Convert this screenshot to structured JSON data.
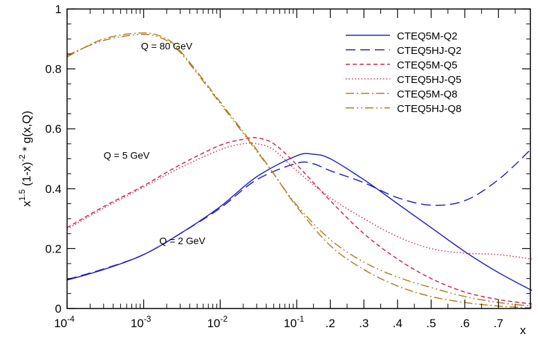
{
  "chart_data": {
    "type": "line",
    "title": "",
    "xlabel": "x",
    "ylabel": "x^{1.5} (1-x)^{-2} * g(x,Q)",
    "xscale": "log-then-linear",
    "xlim": [
      0.0001,
      0.8
    ],
    "ylim": [
      0,
      1
    ],
    "grid": false,
    "legend_position": "top-right",
    "y_ticks": [
      {
        "value": 0,
        "label": "0"
      },
      {
        "value": 0.2,
        "label": "0.2"
      },
      {
        "value": 0.4,
        "label": "0.4"
      },
      {
        "value": 0.6,
        "label": "0.6"
      },
      {
        "value": 0.8,
        "label": "0.8"
      },
      {
        "value": 1,
        "label": "1"
      }
    ],
    "x_major_ticks": [
      {
        "value": 0.0001,
        "base": "10",
        "exp": "-4"
      },
      {
        "value": 0.001,
        "base": "10",
        "exp": "-3"
      },
      {
        "value": 0.01,
        "base": "10",
        "exp": "-2"
      },
      {
        "value": 0.1,
        "base": "10",
        "exp": "-1"
      }
    ],
    "x_linear_ticks": [
      {
        "value": 0.2,
        "label": ".2"
      },
      {
        "value": 0.3,
        "label": ".3"
      },
      {
        "value": 0.4,
        "label": ".4"
      },
      {
        "value": 0.5,
        "label": ".5"
      },
      {
        "value": 0.6,
        "label": ".6"
      },
      {
        "value": 0.7,
        "label": ".7"
      }
    ],
    "annotations": [
      {
        "text": "Q = 80 GeV",
        "x": 0.002,
        "y": 0.865
      },
      {
        "text": "Q = 5 GeV",
        "x": 0.0006,
        "y": 0.5
      },
      {
        "text": "Q = 2 GeV",
        "x": 0.0032,
        "y": 0.215
      }
    ],
    "series": [
      {
        "name": "CTEQ5M-Q2",
        "color": "#1f1fcc",
        "dash": "solid",
        "x": [
          0.0001,
          0.0003,
          0.001,
          0.003,
          0.01,
          0.03,
          0.1,
          0.15,
          0.2,
          0.3,
          0.4,
          0.5,
          0.6,
          0.7,
          0.8
        ],
        "y": [
          0.095,
          0.13,
          0.18,
          0.25,
          0.34,
          0.44,
          0.51,
          0.515,
          0.5,
          0.43,
          0.35,
          0.27,
          0.19,
          0.12,
          0.06
        ]
      },
      {
        "name": "CTEQ5HJ-Q2",
        "color": "#1f1fcc",
        "dash": "long-dash",
        "x": [
          0.0001,
          0.0003,
          0.001,
          0.003,
          0.01,
          0.03,
          0.1,
          0.15,
          0.2,
          0.3,
          0.4,
          0.5,
          0.6,
          0.7,
          0.8
        ],
        "y": [
          0.097,
          0.132,
          0.18,
          0.25,
          0.335,
          0.43,
          0.485,
          0.483,
          0.46,
          0.42,
          0.37,
          0.345,
          0.36,
          0.43,
          0.535
        ]
      },
      {
        "name": "CTEQ5M-Q5",
        "color": "#d6204a",
        "dash": "dashed",
        "x": [
          0.0001,
          0.0003,
          0.001,
          0.003,
          0.01,
          0.02,
          0.03,
          0.05,
          0.1,
          0.2,
          0.3,
          0.4,
          0.5,
          0.6,
          0.7,
          0.8
        ],
        "y": [
          0.27,
          0.34,
          0.41,
          0.48,
          0.545,
          0.565,
          0.57,
          0.55,
          0.48,
          0.36,
          0.25,
          0.165,
          0.1,
          0.055,
          0.03,
          0.015
        ]
      },
      {
        "name": "CTEQ5HJ-Q5",
        "color": "#d6204a",
        "dash": "dotted",
        "x": [
          0.0001,
          0.0003,
          0.001,
          0.003,
          0.01,
          0.02,
          0.03,
          0.05,
          0.1,
          0.2,
          0.3,
          0.4,
          0.5,
          0.6,
          0.7,
          0.8
        ],
        "y": [
          0.265,
          0.335,
          0.405,
          0.47,
          0.53,
          0.55,
          0.55,
          0.53,
          0.46,
          0.37,
          0.3,
          0.24,
          0.2,
          0.185,
          0.18,
          0.165
        ]
      },
      {
        "name": "CTEQ5M-Q8",
        "color": "#b07d1c",
        "dash": "dash-dot",
        "x": [
          0.0001,
          0.0003,
          0.001,
          0.002,
          0.003,
          0.005,
          0.01,
          0.02,
          0.03,
          0.05,
          0.1,
          0.2,
          0.3,
          0.4,
          0.5,
          0.6,
          0.7,
          0.8
        ],
        "y": [
          0.84,
          0.9,
          0.92,
          0.9,
          0.86,
          0.79,
          0.69,
          0.59,
          0.53,
          0.45,
          0.34,
          0.21,
          0.13,
          0.075,
          0.04,
          0.02,
          0.008,
          0.002
        ]
      },
      {
        "name": "CTEQ5HJ-Q8",
        "color": "#b07d1c",
        "dash": "dash-dot-dot",
        "x": [
          0.0001,
          0.0003,
          0.001,
          0.002,
          0.003,
          0.005,
          0.01,
          0.02,
          0.03,
          0.05,
          0.1,
          0.2,
          0.3,
          0.4,
          0.5,
          0.6,
          0.7,
          0.8
        ],
        "y": [
          0.845,
          0.895,
          0.915,
          0.895,
          0.855,
          0.785,
          0.685,
          0.585,
          0.525,
          0.45,
          0.345,
          0.23,
          0.155,
          0.105,
          0.07,
          0.04,
          0.02,
          0.008
        ]
      }
    ]
  }
}
